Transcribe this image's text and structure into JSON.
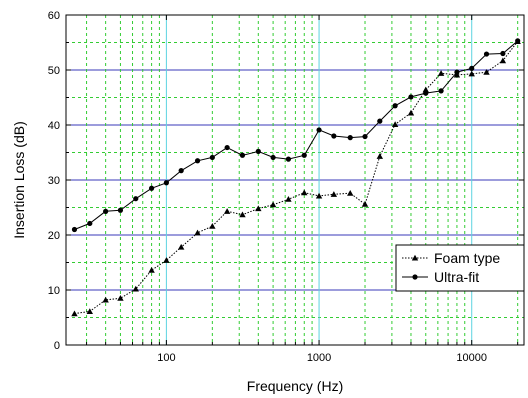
{
  "chart_data": {
    "type": "line",
    "title": "",
    "xlabel": "Frequency (Hz)",
    "ylabel": "Insertion Loss (dB)",
    "x_scale": "log",
    "xlim": [
      22,
      22000
    ],
    "ylim": [
      0,
      60
    ],
    "x_ticks": [
      {
        "value": 100,
        "label": "100"
      },
      {
        "value": 1000,
        "label": "1000"
      },
      {
        "value": 10000,
        "label": "10000"
      }
    ],
    "y_ticks": [
      {
        "value": 0,
        "label": "0"
      },
      {
        "value": 10,
        "label": "10"
      },
      {
        "value": 20,
        "label": "20"
      },
      {
        "value": 30,
        "label": "30"
      },
      {
        "value": 40,
        "label": "40"
      },
      {
        "value": 50,
        "label": "50"
      },
      {
        "value": 60,
        "label": "60"
      }
    ],
    "grid": true,
    "legend_position": "bottom-right",
    "series": [
      {
        "name": "Foam type",
        "line_style": "dotted",
        "marker": "triangle",
        "x": [
          25,
          31.5,
          40,
          50,
          63,
          80,
          100,
          125,
          160,
          200,
          250,
          315,
          400,
          500,
          630,
          800,
          1000,
          1250,
          1600,
          2000,
          2500,
          3150,
          4000,
          5000,
          6300,
          8000,
          10000,
          12500,
          16000,
          20000
        ],
        "y": [
          5.7,
          6.1,
          8.2,
          8.5,
          10.2,
          13.6,
          15.4,
          17.8,
          20.4,
          21.6,
          24.3,
          23.7,
          24.8,
          25.5,
          26.5,
          27.7,
          27.1,
          27.4,
          27.6,
          25.6,
          34.3,
          40.1,
          42.2,
          46.4,
          49.4,
          49.1,
          49.3,
          49.6,
          51.7,
          55.2
        ]
      },
      {
        "name": "Ultra-fit",
        "line_style": "solid",
        "marker": "circle",
        "x": [
          25,
          31.5,
          40,
          50,
          63,
          80,
          100,
          125,
          160,
          200,
          250,
          315,
          400,
          500,
          630,
          800,
          1000,
          1250,
          1600,
          2000,
          2500,
          3150,
          4000,
          5000,
          6300,
          8000,
          10000,
          12500,
          16000,
          20000
        ],
        "y": [
          21.0,
          22.1,
          24.3,
          24.5,
          26.6,
          28.5,
          29.5,
          31.7,
          33.5,
          34.1,
          35.9,
          34.5,
          35.2,
          34.1,
          33.8,
          34.5,
          39.1,
          38.0,
          37.7,
          37.9,
          40.7,
          43.5,
          45.1,
          45.8,
          46.2,
          49.6,
          50.3,
          52.9,
          53.0,
          55.3
        ]
      }
    ],
    "colors": {
      "major_grid_x": "#5cd3e0",
      "major_grid_y": "#3a3ab8",
      "minor_grid": "#33cc33",
      "series": "#000000"
    }
  }
}
